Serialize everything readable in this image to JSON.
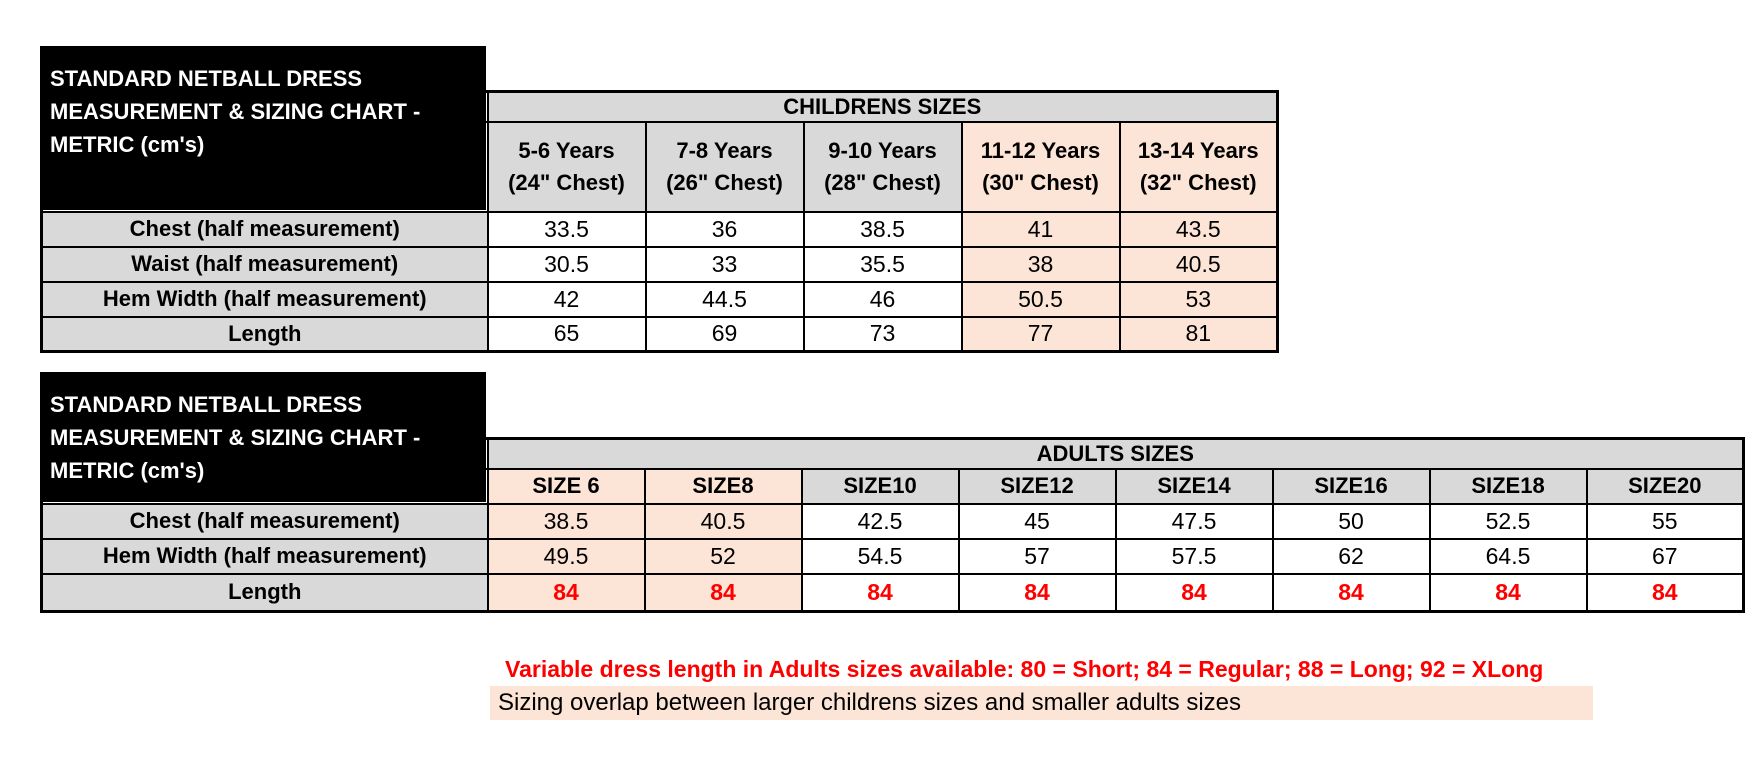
{
  "colors": {
    "header_gray": "#d9d9d9",
    "highlight_peach": "#fce4d6",
    "accent_red": "#ff0000",
    "title_box_bg": "#000000"
  },
  "tables": [
    {
      "title_lines": [
        "STANDARD NETBALL DRESS",
        "MEASUREMENT & SIZING CHART -",
        "METRIC (cm's)"
      ],
      "group_header": "CHILDRENS SIZES",
      "columns": [
        {
          "lines": [
            "5-6 Years",
            "(24\" Chest)"
          ],
          "hl": false
        },
        {
          "lines": [
            "7-8 Years",
            "(26\" Chest)"
          ],
          "hl": false
        },
        {
          "lines": [
            "9-10 Years",
            "(28\" Chest)"
          ],
          "hl": false
        },
        {
          "lines": [
            "11-12 Years",
            "(30\" Chest)"
          ],
          "hl": true
        },
        {
          "lines": [
            "13-14 Years",
            "(32\" Chest)"
          ],
          "hl": true
        }
      ],
      "rows": [
        {
          "label": "Chest (half measurement)",
          "red": false,
          "values": [
            "33.5",
            "36",
            "38.5",
            "41",
            "43.5"
          ]
        },
        {
          "label": "Waist (half measurement)",
          "red": false,
          "values": [
            "30.5",
            "33",
            "35.5",
            "38",
            "40.5"
          ]
        },
        {
          "label": "Hem Width (half measurement)",
          "red": false,
          "values": [
            "42",
            "44.5",
            "46",
            "50.5",
            "53"
          ]
        },
        {
          "label": "Length",
          "red": false,
          "values": [
            "65",
            "69",
            "73",
            "77",
            "81"
          ]
        }
      ]
    },
    {
      "title_lines": [
        "STANDARD NETBALL DRESS",
        "MEASUREMENT & SIZING CHART -",
        "METRIC (cm's)"
      ],
      "group_header": "ADULTS SIZES",
      "columns": [
        {
          "lines": [
            "SIZE 6"
          ],
          "hl": true
        },
        {
          "lines": [
            "SIZE8"
          ],
          "hl": true
        },
        {
          "lines": [
            "SIZE10"
          ],
          "hl": false
        },
        {
          "lines": [
            "SIZE12"
          ],
          "hl": false
        },
        {
          "lines": [
            "SIZE14"
          ],
          "hl": false
        },
        {
          "lines": [
            "SIZE16"
          ],
          "hl": false
        },
        {
          "lines": [
            "SIZE18"
          ],
          "hl": false
        },
        {
          "lines": [
            "SIZE20"
          ],
          "hl": false
        }
      ],
      "rows": [
        {
          "label": "Chest (half measurement)",
          "red": false,
          "values": [
            "38.5",
            "40.5",
            "42.5",
            "45",
            "47.5",
            "50",
            "52.5",
            "55"
          ]
        },
        {
          "label": "Hem Width (half measurement)",
          "red": false,
          "values": [
            "49.5",
            "52",
            "54.5",
            "57",
            "57.5",
            "62",
            "64.5",
            "67"
          ]
        },
        {
          "label": "Length",
          "red": true,
          "values": [
            "84",
            "84",
            "84",
            "84",
            "84",
            "84",
            "84",
            "84"
          ]
        }
      ]
    }
  ],
  "notes": {
    "variable_length": "Variable dress length in Adults sizes available: 80 = Short; 84 = Regular; 88 = Long; 92 = XLong",
    "sizing_overlap": "Sizing overlap between larger childrens sizes and smaller adults sizes"
  }
}
